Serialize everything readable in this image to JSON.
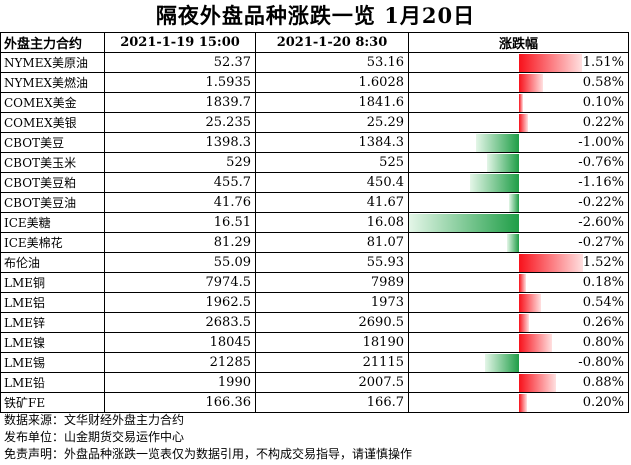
{
  "title": "隔夜外盘品种涨跌一览 1月20日",
  "headers": [
    "外盘主力合约",
    "2021-1-19 15:00",
    "2021-1-20 8:30",
    "涨跌幅"
  ],
  "rows": [
    {
      "name": "NYMEX美原油",
      "prev": "52.37",
      "curr": "53.16",
      "pct_text": "1.51%",
      "pct": 1.51
    },
    {
      "name": "NYMEX美燃油",
      "prev": "1.5935",
      "curr": "1.6028",
      "pct_text": "0.58%",
      "pct": 0.58
    },
    {
      "name": "COMEX美金",
      "prev": "1839.7",
      "curr": "1841.6",
      "pct_text": "0.10%",
      "pct": 0.1
    },
    {
      "name": "COMEX美银",
      "prev": "25.235",
      "curr": "25.29",
      "pct_text": "0.22%",
      "pct": 0.22
    },
    {
      "name": "CBOT美豆",
      "prev": "1398.3",
      "curr": "1384.3",
      "pct_text": "-1.00%",
      "pct": -1.0
    },
    {
      "name": "CBOT美玉米",
      "prev": "529",
      "curr": "525",
      "pct_text": "-0.76%",
      "pct": -0.76
    },
    {
      "name": "CBOT美豆粕",
      "prev": "455.7",
      "curr": "450.4",
      "pct_text": "-1.16%",
      "pct": -1.16
    },
    {
      "name": "CBOT美豆油",
      "prev": "41.76",
      "curr": "41.67",
      "pct_text": "-0.22%",
      "pct": -0.22
    },
    {
      "name": "ICE美糖",
      "prev": "16.51",
      "curr": "16.08",
      "pct_text": "-2.60%",
      "pct": -2.6
    },
    {
      "name": "ICE美棉花",
      "prev": "81.29",
      "curr": "81.07",
      "pct_text": "-0.27%",
      "pct": -0.27
    },
    {
      "name": "布伦油",
      "prev": "55.09",
      "curr": "55.93",
      "pct_text": "1.52%",
      "pct": 1.52
    },
    {
      "name": "LME铜",
      "prev": "7974.5",
      "curr": "7989",
      "pct_text": "0.18%",
      "pct": 0.18
    },
    {
      "name": "LME铝",
      "prev": "1962.5",
      "curr": "1973",
      "pct_text": "0.54%",
      "pct": 0.54
    },
    {
      "name": "LME锌",
      "prev": "2683.5",
      "curr": "2690.5",
      "pct_text": "0.26%",
      "pct": 0.26
    },
    {
      "name": "LME镍",
      "prev": "18045",
      "curr": "18190",
      "pct_text": "0.80%",
      "pct": 0.8
    },
    {
      "name": "LME锡",
      "prev": "21285",
      "curr": "21115",
      "pct_text": "-0.80%",
      "pct": -0.8
    },
    {
      "name": "LME铅",
      "prev": "1990",
      "curr": "2007.5",
      "pct_text": "0.88%",
      "pct": 0.88
    },
    {
      "name": "铁矿FE",
      "prev": "166.36",
      "curr": "166.7",
      "pct_text": "0.20%",
      "pct": 0.2
    }
  ],
  "footer": [
    "数据来源：文华财经外盘主力合约",
    "发布单位：山金期货交易运作中心",
    "免责声明：外盘品种涨跌一览表仅为数据引用，不构成交易指导，请谨慎操作"
  ],
  "colors": {
    "up": "#f8111b",
    "down": "#1f9e47"
  }
}
